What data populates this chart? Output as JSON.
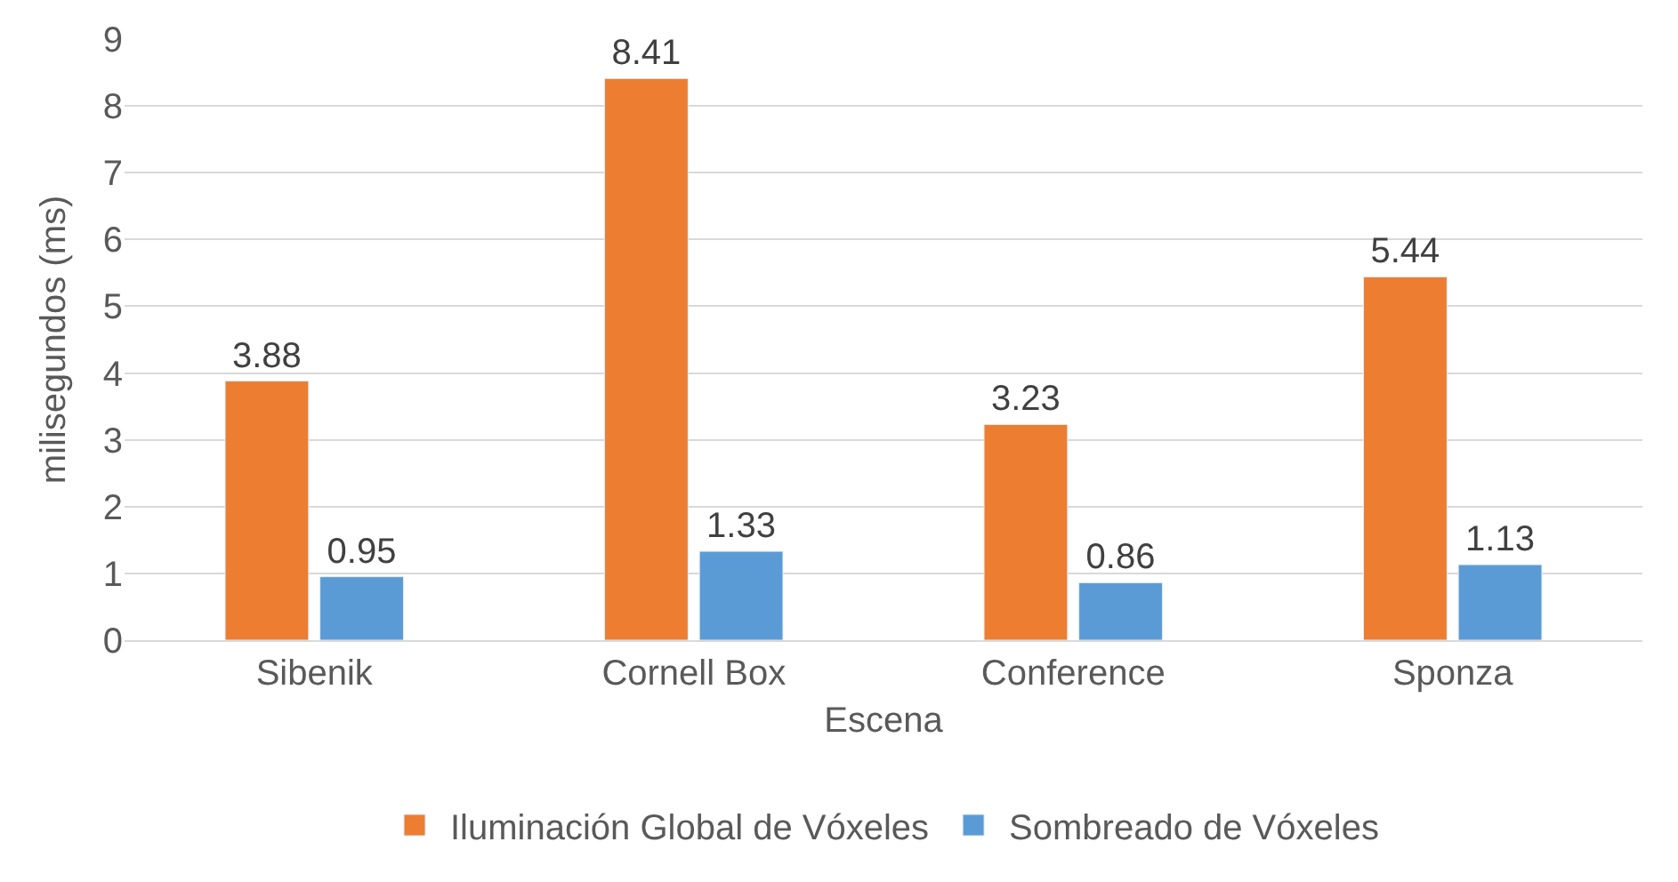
{
  "chart_data": {
    "type": "bar",
    "xlabel": "Escena",
    "ylabel": "milisegundos (ms)",
    "categories": [
      "Sibenik",
      "Cornell Box",
      "Conference",
      "Sponza"
    ],
    "series": [
      {
        "name": "Iluminación Global de Vóxeles",
        "color": "#ed7d31",
        "values": [
          3.88,
          8.41,
          3.23,
          5.44
        ]
      },
      {
        "name": "Sombreado de Vóxeles",
        "color": "#5b9bd5",
        "values": [
          0.95,
          1.33,
          0.86,
          1.13
        ]
      }
    ],
    "ylim": [
      0,
      9
    ],
    "yticks": [
      0,
      1,
      2,
      3,
      4,
      5,
      6,
      7,
      8,
      9
    ],
    "grid": "y",
    "legend": "bottom",
    "data_labels": true
  }
}
